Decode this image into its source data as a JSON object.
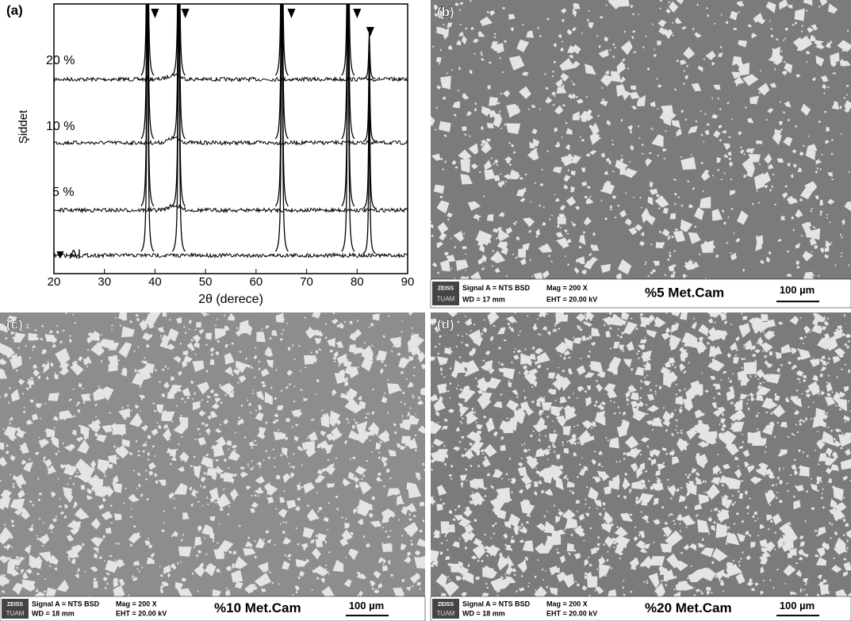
{
  "chart_data": {
    "type": "line",
    "panel_label": "(a)",
    "x_label": "2θ (derece)",
    "y_label": "Şiddet",
    "xlim": [
      20,
      90
    ],
    "xticks": [
      20,
      30,
      40,
      50,
      60,
      70,
      80,
      90
    ],
    "peaks": [
      38.5,
      44.7,
      65.1,
      78.2,
      82.4
    ],
    "markers": [
      40,
      46,
      67,
      80,
      82.6
    ],
    "series": [
      {
        "name": "20 %"
      },
      {
        "name": "10 %"
      },
      {
        "name": "5 %"
      },
      {
        "name": "▼ Al"
      }
    ]
  },
  "micrographs": [
    {
      "label": "(b)",
      "brand": "ZEISS",
      "lab": "TUAM",
      "signal": "Signal A = NTS BSD",
      "mag": "Mag =   200 X",
      "wd": "WD =  17 mm",
      "eht": "EHT = 20.00 kV",
      "title": "%5 Met.Cam",
      "scale": "100 µm"
    },
    {
      "label": "(c)",
      "brand": "ZEISS",
      "lab": "TUAM",
      "signal": "Signal A = NTS BSD",
      "mag": "Mag =   200 X",
      "wd": "WD =  18 mm",
      "eht": "EHT = 20.00 kV",
      "title": "%10 Met.Cam",
      "scale": "100 µm"
    },
    {
      "label": "(d)",
      "brand": "ZEISS",
      "lab": "TUAM",
      "signal": "Signal A = NTS BSD",
      "mag": "Mag =   200 X",
      "wd": "WD =  18 mm",
      "eht": "EHT = 20.00 kV",
      "title": "%20 Met.Cam",
      "scale": "100 µm"
    }
  ]
}
